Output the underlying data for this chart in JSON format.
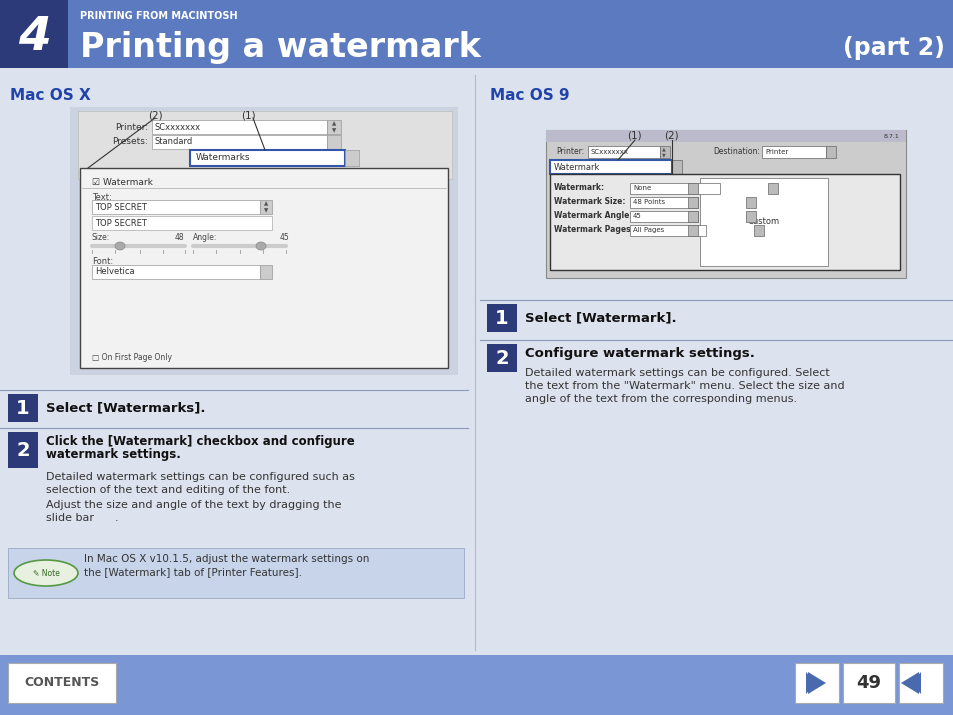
{
  "bg_color": "#dde3ee",
  "header_bg": "#5b7abf",
  "header_dark_bg": "#2d3a7a",
  "header_text_small": "PRINTING FROM MACINTOSH",
  "header_number": "4",
  "header_title": "Printing a watermark",
  "header_part": "(part 2)",
  "footer_bg": "#7b96d4",
  "footer_text": "CONTENTS",
  "footer_page": "49",
  "left_section_title": "Mac OS X",
  "right_section_title": "Mac OS 9",
  "step1_left_bold": "Select [Watermarks].",
  "step2_left_bold1": "Click the [Watermark] checkbox and configure",
  "step2_left_bold2": "watermark settings.",
  "step2_left_line1": "Detailed watermark settings can be configured such as",
  "step2_left_line2": "selection of the text and editing of the font.",
  "step2_left_line3": "Adjust the size and angle of the text by dragging the",
  "step2_left_line4": "slide bar      .",
  "note_line1": "In Mac OS X v10.1.5, adjust the watermark settings on",
  "note_line2": "the [Watermark] tab of [Printer Features].",
  "step1_right_bold": "Select [Watermark].",
  "step2_right_bold": "Configure watermark settings.",
  "step2_right_line1": "Detailed watermark settings can be configured. Select",
  "step2_right_line2": "the text from the \"Watermark\" menu. Select the size and",
  "step2_right_line3": "angle of the text from the corresponding menus.",
  "blue_dark": "#2d3a7a",
  "blue_mid": "#4a6aaf",
  "blue_light": "#c5d3e8",
  "text_blue_title": "#2244aa",
  "divider_color": "#8899bb"
}
